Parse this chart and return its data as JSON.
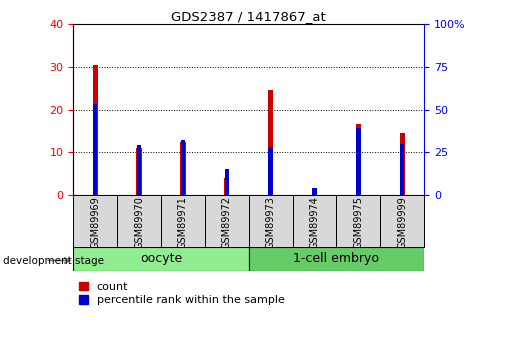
{
  "title": "GDS2387 / 1417867_at",
  "samples": [
    "GSM89969",
    "GSM89970",
    "GSM89971",
    "GSM89972",
    "GSM89973",
    "GSM89974",
    "GSM89975",
    "GSM89999"
  ],
  "count_values": [
    30.5,
    11.0,
    12.5,
    4.0,
    24.5,
    1.5,
    16.5,
    14.5
  ],
  "percentile_values": [
    53,
    29,
    32,
    15,
    28,
    4,
    39,
    30
  ],
  "ylim_left": [
    0,
    40
  ],
  "ylim_right": [
    0,
    100
  ],
  "yticks_left": [
    0,
    10,
    20,
    30,
    40
  ],
  "yticks_right": [
    0,
    25,
    50,
    75,
    100
  ],
  "group_labels": [
    "oocyte",
    "1-cell embryo"
  ],
  "group_colors_left": "#90EE90",
  "group_colors_right": "#66CC66",
  "count_color": "#CC0000",
  "percentile_color": "#0000CC",
  "bg_color": "#D8D8D8",
  "plot_bg": "#FFFFFF",
  "legend_count": "count",
  "legend_percentile": "percentile rank within the sample",
  "dev_stage_label": "development stage"
}
